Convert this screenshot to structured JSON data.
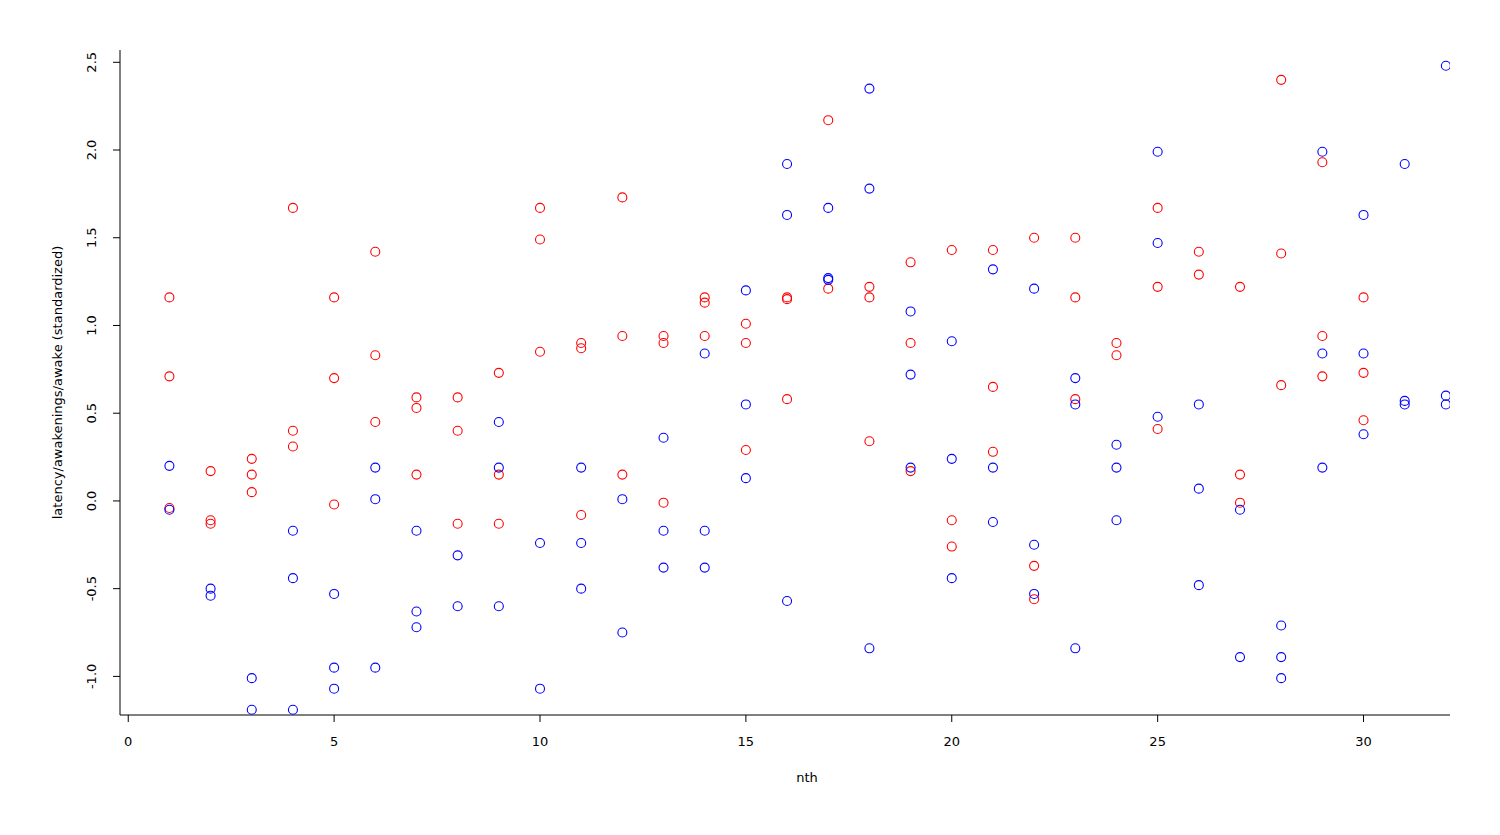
{
  "chart_data": {
    "type": "scatter",
    "x_label": "nth",
    "y_label": "latency/awakenings/awake (standardized)",
    "xlim": [
      -0.2,
      32.1
    ],
    "ylim": [
      -1.22,
      2.57
    ],
    "xticks": [
      0,
      5,
      10,
      15,
      20,
      25,
      30
    ],
    "yticks": [
      {
        "value": -1,
        "label": "-1.0"
      },
      -0.5,
      {
        "value": 0,
        "label": "0.0"
      },
      0.5,
      {
        "value": 1,
        "label": "1.0"
      },
      1.5,
      {
        "value": 2,
        "label": "2.0"
      },
      2.5
    ],
    "grid": false,
    "marker": "open-circle",
    "series": [
      {
        "color": "#ff0000",
        "x": [
          1,
          1,
          1,
          2,
          2,
          2,
          3,
          3,
          3,
          4,
          4,
          4,
          5,
          5,
          5,
          6,
          6,
          6,
          7,
          7,
          7,
          8,
          8,
          8,
          9,
          9,
          9,
          10,
          10,
          10,
          11,
          11,
          11,
          12,
          12,
          12,
          13,
          13,
          13,
          14,
          14,
          14,
          15,
          15,
          15,
          16,
          16,
          16,
          17,
          17,
          18,
          18,
          18,
          19,
          19,
          19,
          20,
          20,
          20,
          21,
          21,
          21,
          22,
          22,
          22,
          23,
          23,
          23,
          24,
          24,
          25,
          25,
          25,
          26,
          26,
          27,
          27,
          27,
          28,
          28,
          28,
          29,
          29,
          29,
          30,
          30,
          30
        ],
        "values": [
          1.16,
          0.71,
          -0.04,
          0.17,
          -0.11,
          -0.13,
          0.24,
          0.15,
          0.05,
          1.67,
          0.4,
          0.31,
          1.16,
          0.7,
          -0.02,
          1.42,
          0.83,
          0.45,
          0.59,
          0.53,
          0.15,
          0.59,
          0.4,
          -0.13,
          0.73,
          0.15,
          -0.13,
          1.67,
          1.49,
          0.85,
          0.9,
          0.87,
          -0.08,
          1.73,
          0.94,
          0.15,
          0.94,
          0.9,
          -0.01,
          1.16,
          1.13,
          0.94,
          1.01,
          0.9,
          0.29,
          1.16,
          1.15,
          0.58,
          2.17,
          1.21,
          1.22,
          1.16,
          0.34,
          1.36,
          0.9,
          0.17,
          1.43,
          -0.11,
          -0.26,
          1.43,
          0.65,
          0.28,
          1.5,
          -0.37,
          -0.56,
          1.5,
          1.16,
          0.58,
          0.9,
          0.83,
          1.67,
          1.22,
          0.41,
          1.42,
          1.29,
          1.22,
          0.15,
          -0.01,
          2.4,
          1.41,
          0.66,
          1.93,
          0.94,
          0.71,
          1.16,
          0.73,
          0.46
        ]
      },
      {
        "color": "#0000ff",
        "x": [
          1,
          1,
          2,
          2,
          3,
          3,
          4,
          4,
          4,
          5,
          5,
          5,
          6,
          6,
          6,
          7,
          7,
          7,
          8,
          8,
          9,
          9,
          9,
          10,
          10,
          11,
          11,
          11,
          12,
          12,
          13,
          13,
          13,
          14,
          14,
          14,
          15,
          15,
          15,
          16,
          16,
          16,
          17,
          17,
          17,
          18,
          18,
          18,
          19,
          19,
          19,
          20,
          20,
          20,
          21,
          21,
          21,
          22,
          22,
          22,
          23,
          23,
          23,
          24,
          24,
          24,
          25,
          25,
          25,
          26,
          26,
          26,
          27,
          27,
          28,
          28,
          28,
          29,
          29,
          29,
          30,
          30,
          30,
          31,
          31,
          31,
          32,
          32,
          32
        ],
        "values": [
          0.2,
          -0.05,
          -0.5,
          -0.54,
          -1.01,
          -1.19,
          -0.17,
          -0.44,
          -1.19,
          -0.53,
          -0.95,
          -1.07,
          0.19,
          0.01,
          -0.95,
          -0.17,
          -0.63,
          -0.72,
          -0.31,
          -0.6,
          0.45,
          0.19,
          -0.6,
          -0.24,
          -1.07,
          0.19,
          -0.24,
          -0.5,
          0.01,
          -0.75,
          0.36,
          -0.17,
          -0.38,
          0.84,
          -0.17,
          -0.38,
          1.2,
          0.55,
          0.13,
          1.92,
          1.63,
          -0.57,
          1.67,
          1.27,
          1.26,
          2.35,
          1.78,
          -0.84,
          1.08,
          0.72,
          0.19,
          0.91,
          0.24,
          -0.44,
          1.32,
          0.19,
          -0.12,
          1.21,
          -0.25,
          -0.53,
          0.7,
          0.55,
          -0.84,
          0.32,
          0.19,
          -0.11,
          1.99,
          1.47,
          0.48,
          0.55,
          0.07,
          -0.48,
          -0.05,
          -0.89,
          -0.71,
          -0.89,
          -1.01,
          1.99,
          0.84,
          0.19,
          1.63,
          0.84,
          0.38,
          1.92,
          0.57,
          0.55,
          2.48,
          0.6,
          0.55
        ]
      }
    ]
  }
}
